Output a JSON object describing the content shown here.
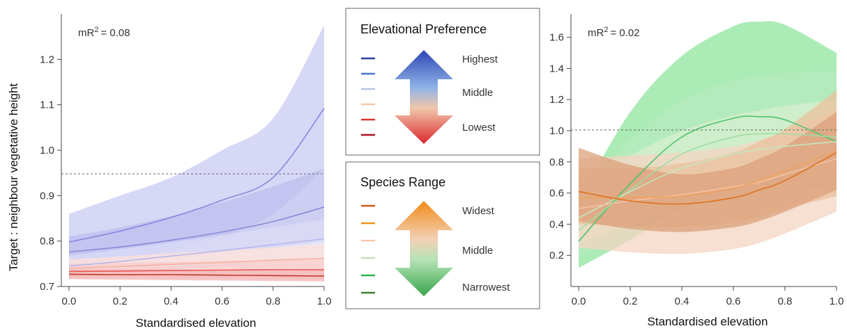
{
  "chart_data": [
    {
      "type": "line",
      "title": "",
      "annotation_prefix": "mR",
      "annotation_sup": "2",
      "annotation_value": "= 0.08",
      "xlabel": "Standardised elevation",
      "ylabel": "Target : neighbour vegetative height",
      "xlim": [
        -0.03,
        1.0
      ],
      "ylim": [
        0.7,
        1.3
      ],
      "xticks": [
        "0.0",
        "0.2",
        "0.4",
        "0.6",
        "0.8",
        "1.0"
      ],
      "yticks": [
        "0.7",
        "0.8",
        "0.9",
        "1.0",
        "1.1",
        "1.2"
      ],
      "reference_line": 0.948,
      "x": [
        0.0,
        0.2,
        0.4,
        0.6,
        0.8,
        1.0
      ],
      "series": [
        {
          "color": "#8888dd",
          "band_color": "#c9c9f3",
          "values": [
            0.798,
            0.822,
            0.852,
            0.89,
            0.94,
            1.092
          ],
          "lower": [
            0.745,
            0.76,
            0.78,
            0.81,
            0.86,
            0.96
          ],
          "upper": [
            0.86,
            0.9,
            0.94,
            1.0,
            1.07,
            1.275
          ]
        },
        {
          "color": "#8a8ad8",
          "band_color": "#bdbdef",
          "values": [
            0.776,
            0.787,
            0.802,
            0.82,
            0.843,
            0.875
          ],
          "lower": [
            0.75,
            0.755,
            0.762,
            0.772,
            0.785,
            0.8
          ],
          "upper": [
            0.81,
            0.83,
            0.855,
            0.885,
            0.92,
            0.96
          ]
        },
        {
          "color": "#b7b7ea",
          "band_color": "#dcdcf7",
          "values": [
            0.745,
            0.755,
            0.767,
            0.779,
            0.792,
            0.805
          ],
          "lower": [
            0.725,
            0.73,
            0.737,
            0.745,
            0.752,
            0.76
          ],
          "upper": [
            0.768,
            0.782,
            0.797,
            0.813,
            0.83,
            0.848
          ]
        },
        {
          "color": "#f3b3a3",
          "band_color": "#fde0d8",
          "values": [
            0.74,
            0.744,
            0.749,
            0.753,
            0.758,
            0.762
          ],
          "lower": [
            0.722,
            0.723,
            0.725,
            0.727,
            0.729,
            0.731
          ],
          "upper": [
            0.76,
            0.766,
            0.773,
            0.779,
            0.786,
            0.793
          ]
        },
        {
          "color": "#e85a5a",
          "band_color": "#f8cccc",
          "values": [
            0.733,
            0.734,
            0.735,
            0.736,
            0.737,
            0.737
          ],
          "lower": [
            0.717,
            0.717,
            0.716,
            0.716,
            0.715,
            0.715
          ],
          "upper": [
            0.75,
            0.752,
            0.754,
            0.756,
            0.758,
            0.76
          ]
        },
        {
          "color": "#c0392b",
          "band_color": "#f4b8b8",
          "values": [
            0.727,
            0.726,
            0.726,
            0.725,
            0.724,
            0.723
          ],
          "lower": [
            0.716,
            0.715,
            0.714,
            0.713,
            0.712,
            0.711
          ],
          "upper": [
            0.738,
            0.738,
            0.738,
            0.737,
            0.737,
            0.737
          ]
        }
      ]
    },
    {
      "type": "line",
      "title": "",
      "annotation_prefix": "mR",
      "annotation_sup": "2",
      "annotation_value": "= 0.02",
      "xlabel": "Standardised elevation",
      "ylabel": "",
      "xlim": [
        -0.03,
        1.0
      ],
      "ylim": [
        0.0,
        1.75
      ],
      "xticks": [
        "0.0",
        "0.2",
        "0.4",
        "0.6",
        "0.8",
        "1.0"
      ],
      "yticks": [
        "0.2",
        "0.4",
        "0.6",
        "0.8",
        "1.0",
        "1.2",
        "1.4",
        "1.6"
      ],
      "reference_line": 1.005,
      "x": [
        0.0,
        0.2,
        0.4,
        0.6,
        0.7,
        0.8,
        1.0
      ],
      "series": [
        {
          "color": "#4cc36b",
          "band_color": "#8ee49e",
          "values": [
            0.29,
            0.66,
            0.96,
            1.08,
            1.09,
            1.07,
            0.93
          ],
          "lower": [
            0.12,
            0.3,
            0.5,
            0.62,
            0.66,
            0.68,
            0.6
          ],
          "upper": [
            0.55,
            1.12,
            1.48,
            1.67,
            1.7,
            1.68,
            1.5
          ]
        },
        {
          "color": "#9fdca5",
          "band_color": "#b5ebbd",
          "values": [
            0.36,
            0.62,
            0.85,
            0.96,
            0.98,
            0.98,
            0.96
          ],
          "lower": [
            0.2,
            0.36,
            0.55,
            0.65,
            0.68,
            0.7,
            0.66
          ],
          "upper": [
            0.58,
            0.94,
            1.2,
            1.32,
            1.35,
            1.37,
            1.38
          ]
        },
        {
          "color": "#c5e6be",
          "band_color": "#d8efd0",
          "values": [
            0.44,
            0.61,
            0.76,
            0.85,
            0.88,
            0.9,
            0.93
          ],
          "lower": [
            0.28,
            0.4,
            0.52,
            0.6,
            0.63,
            0.66,
            0.68
          ],
          "upper": [
            0.64,
            0.84,
            1.0,
            1.1,
            1.13,
            1.16,
            1.2
          ]
        },
        {
          "color": "#f4c2a4",
          "band_color": "#f4d4c2",
          "values": [
            0.5,
            0.55,
            0.59,
            0.64,
            0.67,
            0.72,
            0.82
          ],
          "lower": [
            0.25,
            0.22,
            0.21,
            0.24,
            0.28,
            0.34,
            0.48
          ],
          "upper": [
            0.82,
            0.84,
            0.86,
            0.9,
            0.94,
            1.0,
            1.14
          ]
        },
        {
          "color": "#f0a060",
          "band_color": "#e9c19e",
          "values": [
            0.57,
            0.57,
            0.58,
            0.63,
            0.68,
            0.74,
            0.87
          ],
          "lower": [
            0.4,
            0.39,
            0.38,
            0.41,
            0.45,
            0.5,
            0.58
          ],
          "upper": [
            0.76,
            0.76,
            0.79,
            0.86,
            0.93,
            1.01,
            1.26
          ]
        },
        {
          "color": "#e0711f",
          "band_color": "#dba07a",
          "values": [
            0.61,
            0.55,
            0.53,
            0.57,
            0.62,
            0.68,
            0.86
          ],
          "lower": [
            0.42,
            0.37,
            0.35,
            0.38,
            0.42,
            0.48,
            0.62
          ],
          "upper": [
            0.89,
            0.78,
            0.72,
            0.76,
            0.82,
            0.9,
            1.12
          ]
        }
      ]
    }
  ],
  "legend_elev": {
    "title": "Elevational Preference",
    "labels": [
      "Highest",
      "Middle",
      "Lowest"
    ],
    "swatches": [
      "#2a3d9e",
      "#4a78c8",
      "#b6c4ea",
      "#f4c7a8",
      "#e0352b",
      "#b01020"
    ],
    "arrow_colors": [
      "#2d46b3",
      "#8fb3e8",
      "#f2c7ab",
      "#d9262b"
    ]
  },
  "legend_range": {
    "title": "Species Range",
    "labels": [
      "Widest",
      "Middle",
      "Narrowest"
    ],
    "swatches": [
      "#d2591a",
      "#f0941f",
      "#f4c7a8",
      "#c5e0b8",
      "#2bb34a",
      "#3f7f2c"
    ],
    "arrow_colors": [
      "#f28b17",
      "#f3d0b6",
      "#b6e3b6",
      "#36a64a"
    ]
  }
}
